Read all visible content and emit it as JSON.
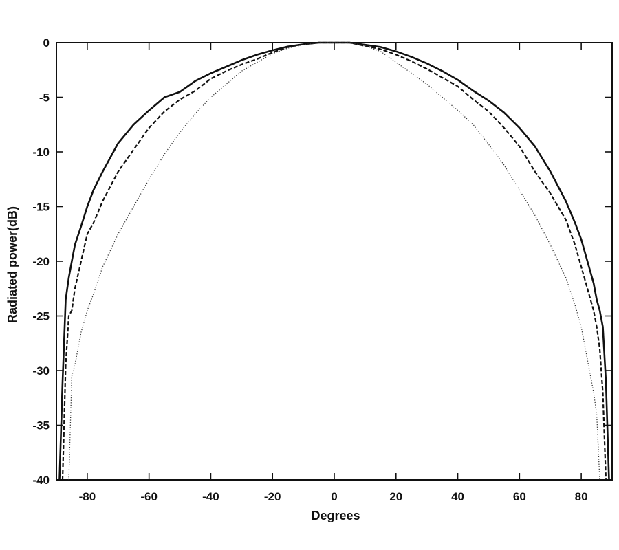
{
  "chart_data": {
    "type": "line",
    "title": "",
    "xlabel": "Degrees",
    "ylabel": "Radiated power(dB)",
    "xlim": [
      -90,
      90
    ],
    "ylim": [
      -40,
      0
    ],
    "grid": false,
    "x_ticks": [
      -80,
      -60,
      -40,
      -20,
      0,
      20,
      40,
      60,
      80
    ],
    "y_ticks": [
      0,
      -5,
      -10,
      -15,
      -20,
      -25,
      -30,
      -35,
      -40
    ],
    "series": [
      {
        "style": "solid",
        "color": "#111111",
        "x": [
          -89,
          -88,
          -87,
          -86,
          -85,
          -84,
          -82,
          -80,
          -78,
          -75,
          -70,
          -65,
          -60,
          -55,
          -50,
          -45,
          -40,
          -35,
          -30,
          -25,
          -20,
          -15,
          -10,
          -5,
          0,
          5,
          10,
          15,
          20,
          25,
          30,
          35,
          40,
          45,
          50,
          55,
          60,
          65,
          70,
          75,
          78,
          80,
          82,
          84,
          85,
          86,
          87,
          88,
          89
        ],
        "y": [
          -40,
          -31,
          -23.5,
          -21.5,
          -20,
          -18.5,
          -16.8,
          -15,
          -13.5,
          -11.8,
          -9.2,
          -7.5,
          -6.2,
          -5,
          -4.5,
          -3.5,
          -2.8,
          -2.2,
          -1.6,
          -1.1,
          -0.7,
          -0.35,
          -0.15,
          0,
          0,
          0,
          -0.2,
          -0.4,
          -0.8,
          -1.3,
          -1.9,
          -2.6,
          -3.4,
          -4.4,
          -5.3,
          -6.4,
          -7.8,
          -9.5,
          -11.8,
          -14.5,
          -16.5,
          -18,
          -20,
          -22,
          -23.5,
          -24.5,
          -26,
          -31,
          -40
        ]
      },
      {
        "style": "dashed",
        "color": "#111111",
        "x": [
          -88,
          -87,
          -86,
          -85,
          -84,
          -82,
          -80,
          -78,
          -75,
          -70,
          -65,
          -60,
          -55,
          -50,
          -45,
          -40,
          -35,
          -30,
          -25,
          -20,
          -15,
          -10,
          -5,
          0,
          5,
          10,
          15,
          20,
          25,
          30,
          35,
          40,
          45,
          50,
          55,
          60,
          65,
          70,
          75,
          78,
          80,
          82,
          84,
          85,
          86,
          87,
          88
        ],
        "y": [
          -40,
          -29.5,
          -25,
          -24.5,
          -22.5,
          -20,
          -17.5,
          -16.5,
          -14.5,
          -11.8,
          -9.8,
          -7.8,
          -6.3,
          -5.2,
          -4.4,
          -3.3,
          -2.6,
          -2,
          -1.5,
          -0.9,
          -0.4,
          -0.15,
          0,
          0,
          0,
          -0.3,
          -0.6,
          -1.1,
          -1.7,
          -2.4,
          -3.2,
          -4,
          -5.2,
          -6.3,
          -7.8,
          -9.5,
          -11.8,
          -13.8,
          -16.2,
          -18.5,
          -20.5,
          -22.5,
          -24.5,
          -26,
          -28,
          -32,
          -40
        ]
      },
      {
        "style": "dotted",
        "color": "#333333",
        "x": [
          -86,
          -85,
          -84,
          -82,
          -80,
          -78,
          -75,
          -70,
          -65,
          -60,
          -55,
          -50,
          -45,
          -40,
          -35,
          -30,
          -25,
          -20,
          -15,
          -10,
          -5,
          0,
          5,
          10,
          15,
          20,
          25,
          30,
          35,
          40,
          45,
          50,
          55,
          60,
          65,
          70,
          75,
          78,
          80,
          82,
          84,
          85,
          86
        ],
        "y": [
          -40,
          -30.5,
          -29.5,
          -26.5,
          -24.5,
          -23,
          -20.5,
          -17.5,
          -15,
          -12.5,
          -10.2,
          -8.2,
          -6.5,
          -5,
          -3.8,
          -2.6,
          -1.8,
          -1,
          -0.5,
          -0.2,
          0,
          0,
          0,
          -0.3,
          -0.8,
          -1.8,
          -2.8,
          -3.8,
          -5,
          -6.2,
          -7.5,
          -9.3,
          -11.2,
          -13.5,
          -15.8,
          -18.5,
          -21.5,
          -24,
          -26,
          -29,
          -32,
          -34,
          -40
        ]
      }
    ]
  }
}
